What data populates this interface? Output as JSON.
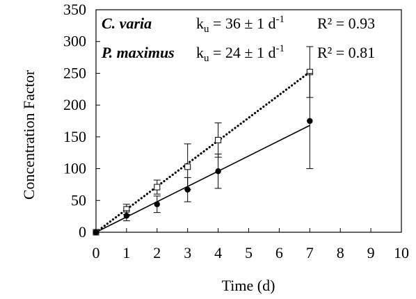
{
  "chart_data": {
    "type": "scatter",
    "xlabel": "Time (d)",
    "ylabel": "Concentration Factor",
    "xlim": [
      0,
      10
    ],
    "ylim": [
      0,
      350
    ],
    "x_ticks": [
      "0",
      "1",
      "2",
      "3",
      "4",
      "5",
      "6",
      "7",
      "8",
      "9",
      "10"
    ],
    "y_ticks": [
      "0",
      "50",
      "100",
      "150",
      "200",
      "250",
      "300",
      "350"
    ],
    "grid": false,
    "annotations": [
      {
        "species": "C. varia",
        "k_symbol": "k",
        "k_sub": "u",
        "k_value": " = 36 ± 1 d",
        "k_unit_sup": "-1",
        "r2": "R² = 0.93"
      },
      {
        "species": "P. maximus",
        "k_symbol": "k",
        "k_sub": "u",
        "k_value": " = 24 ± 1 d",
        "k_unit_sup": "-1",
        "r2": "R² = 0.81"
      }
    ],
    "series": [
      {
        "marker": "open-square",
        "line": "dotted",
        "color": "#000000",
        "x": [
          0,
          1,
          2,
          3,
          4,
          7
        ],
        "y": [
          0,
          36,
          71,
          103,
          145,
          252
        ],
        "err": [
          0,
          8,
          11,
          36,
          27,
          40
        ],
        "fit_slope": 36
      },
      {
        "marker": "filled-circle",
        "line": "solid",
        "color": "#000000",
        "x": [
          0,
          1,
          2,
          3,
          4,
          7
        ],
        "y": [
          0,
          26,
          44,
          67,
          96,
          175
        ],
        "err": [
          0,
          8,
          13,
          19,
          27,
          75
        ],
        "fit_slope": 24
      }
    ]
  }
}
